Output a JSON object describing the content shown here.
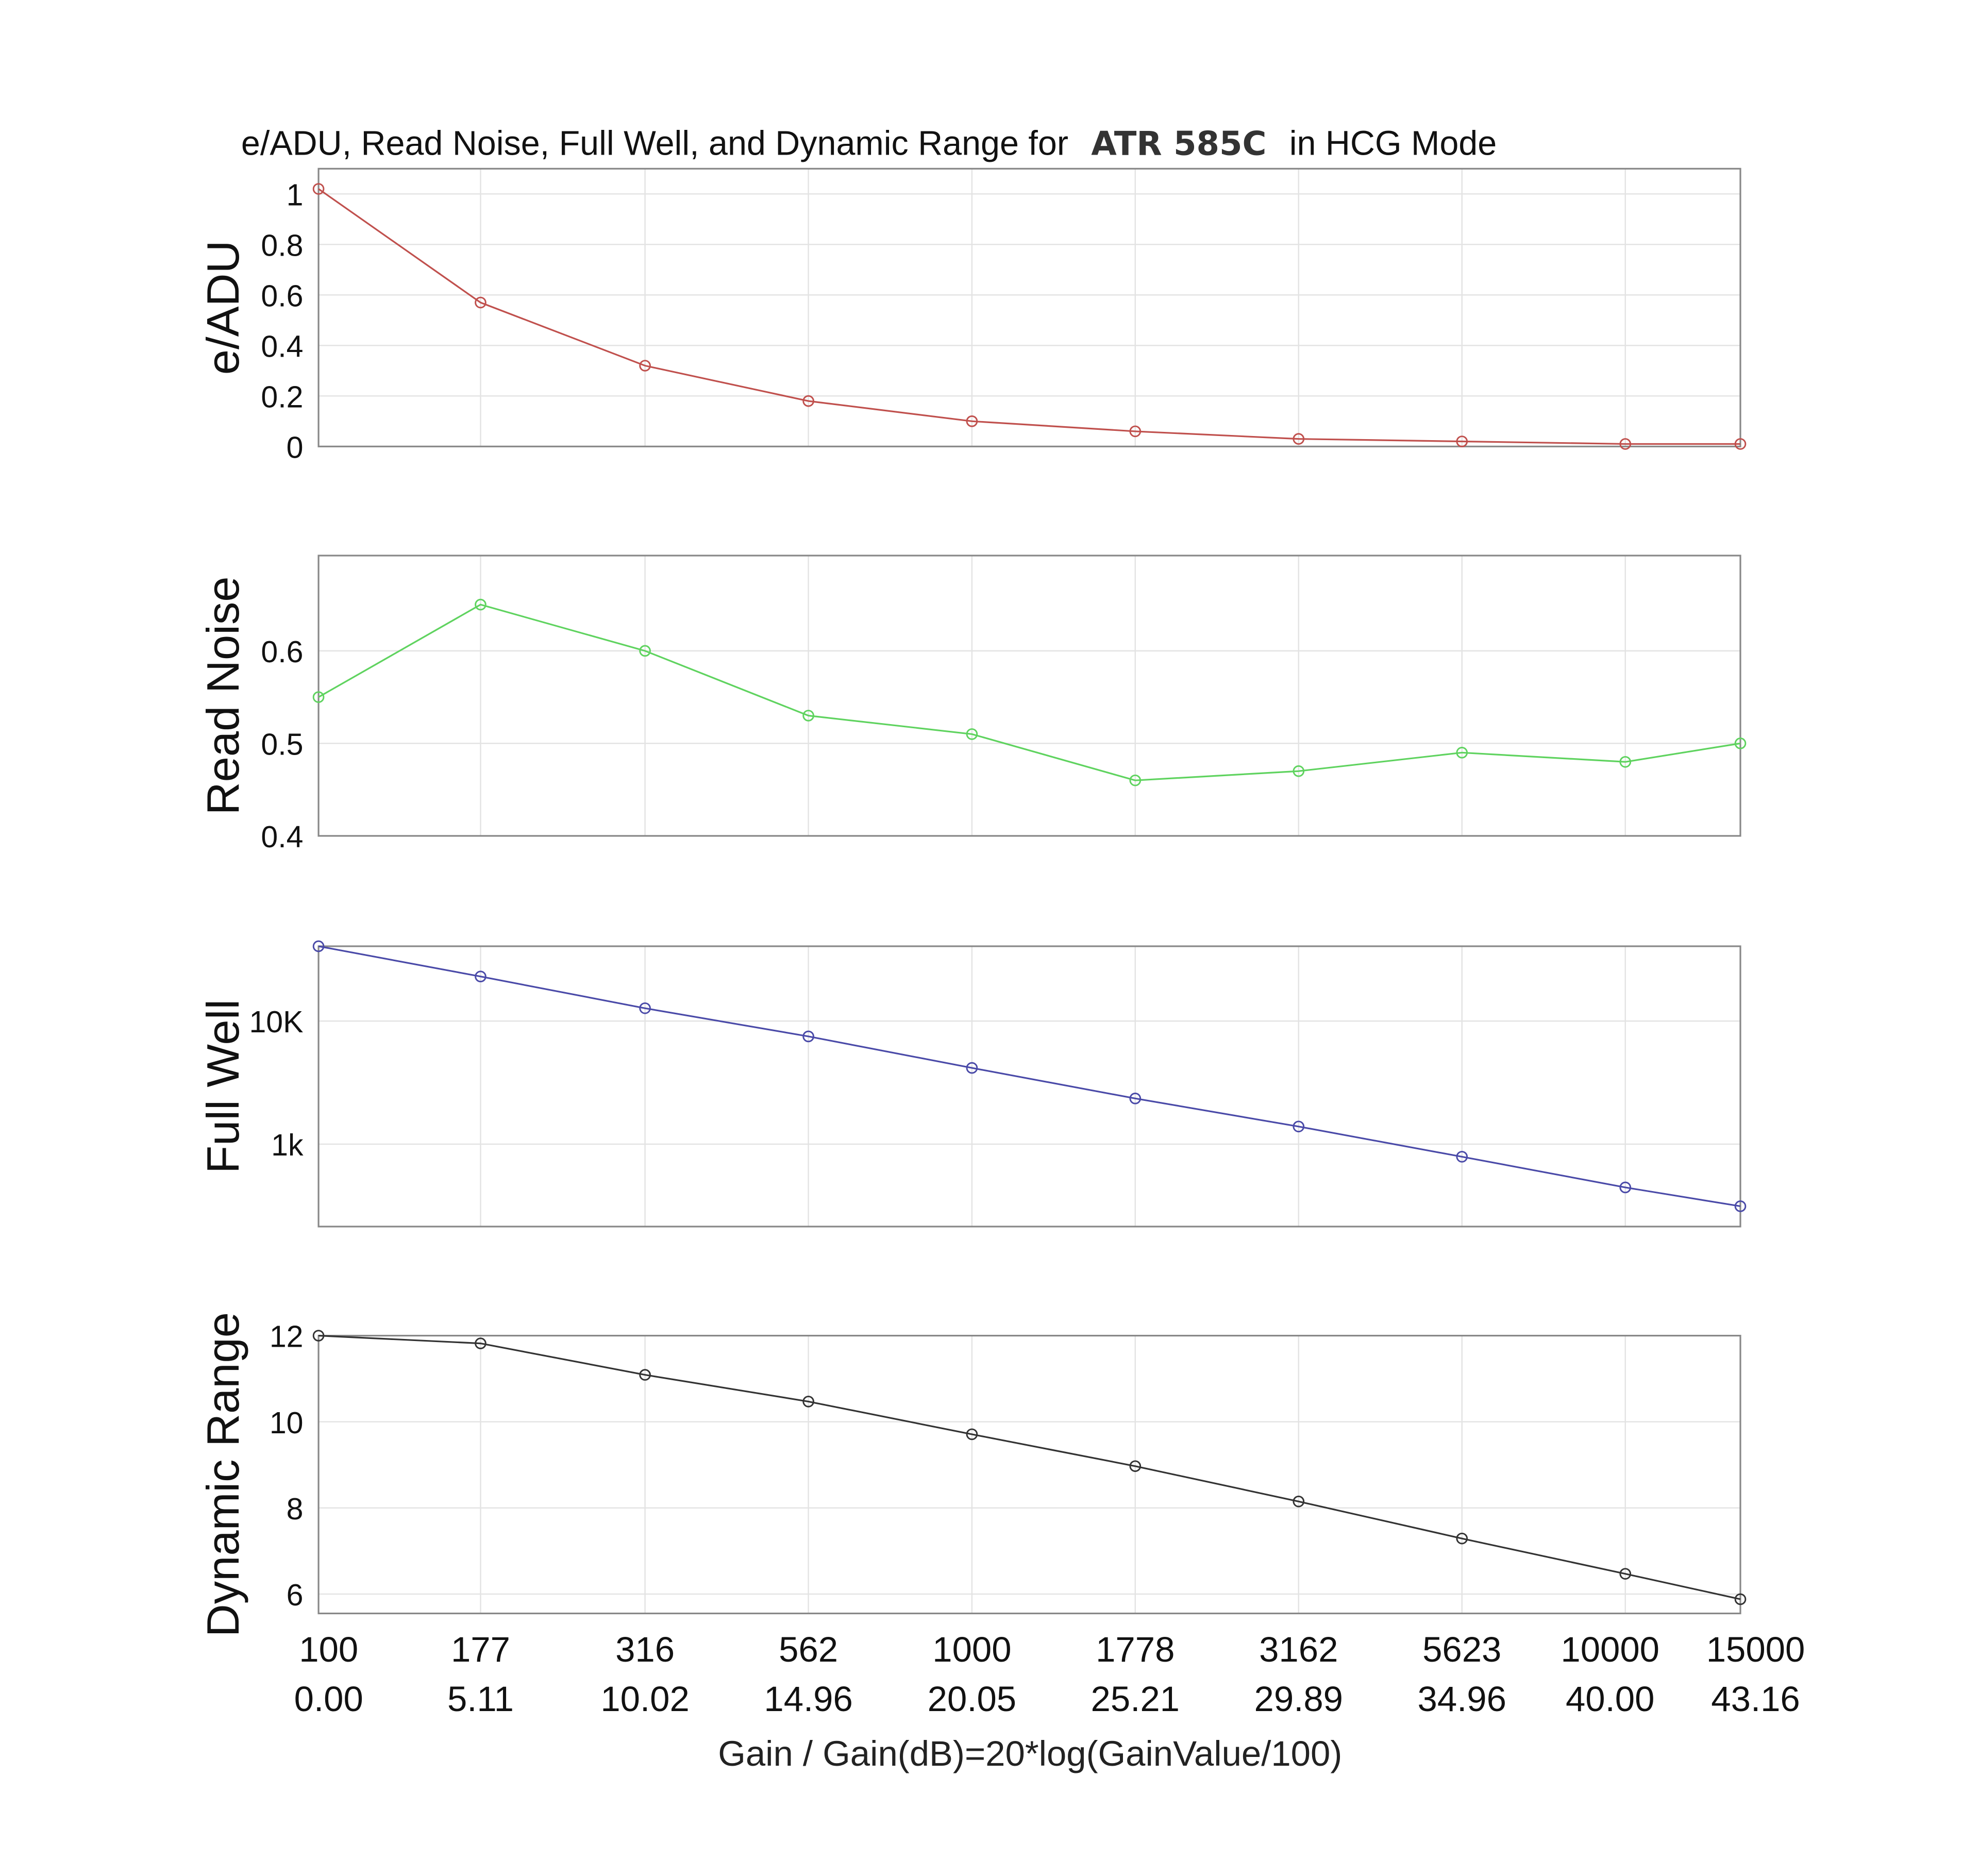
{
  "chart_data": {
    "type": "line",
    "title_prefix": "e/ADU, Read Noise, Full Well, and Dynamic Range for",
    "title_camera": "ATR 585C",
    "title_suffix": "in HCG Mode",
    "xlabel": "Gain / Gain(dB)=20*log(GainValue/100)",
    "x_scale": "log",
    "x": [
      100,
      177,
      316,
      562,
      1000,
      1778,
      3162,
      5623,
      10000,
      15000
    ],
    "x_tick_labels": [
      "100",
      "177",
      "316",
      "562",
      "1000",
      "1778",
      "3162",
      "5623",
      "10000",
      "15000"
    ],
    "x_tick_labels_db": [
      "0.00",
      "5.11",
      "10.02",
      "14.96",
      "20.05",
      "25.21",
      "29.89",
      "34.96",
      "40.00",
      "43.16"
    ],
    "grid": true,
    "panels": [
      {
        "name": "e/ADU",
        "ylabel": "e/ADU",
        "color": "#c0504d",
        "y_scale": "linear",
        "ylim": [
          0,
          1.1
        ],
        "yticks": [
          0,
          0.2,
          0.4,
          0.6,
          0.8,
          1
        ],
        "ytick_labels": [
          "0",
          "0.2",
          "0.4",
          "0.6",
          "0.8",
          "1"
        ],
        "values": [
          1.02,
          0.57,
          0.32,
          0.18,
          0.1,
          0.06,
          0.03,
          0.02,
          0.01,
          0.01
        ]
      },
      {
        "name": "Read Noise",
        "ylabel": "Read Noise",
        "color": "#5fd35f",
        "y_scale": "linear",
        "ylim": [
          0.4,
          0.703
        ],
        "yticks": [
          0.4,
          0.5,
          0.6
        ],
        "ytick_labels": [
          "0.4",
          "0.5",
          "0.6"
        ],
        "values": [
          0.55,
          0.65,
          0.6,
          0.53,
          0.51,
          0.46,
          0.47,
          0.49,
          0.48,
          0.5
        ]
      },
      {
        "name": "Full Well",
        "ylabel": "Full Well",
        "color": "#4a4aa8",
        "y_scale": "log",
        "ylim": [
          214,
          40500
        ],
        "yticks": [
          1000,
          10000
        ],
        "ytick_labels": [
          "1k",
          "10K"
        ],
        "values": [
          40500,
          23000,
          12700,
          7500,
          4160,
          2350,
          1390,
          790,
          445,
          313
        ]
      },
      {
        "name": "Dynamic Range",
        "ylabel": "Dynamic Range",
        "color": "#333333",
        "y_scale": "linear",
        "ylim": [
          5.55,
          12
        ],
        "yticks": [
          6,
          8,
          10,
          12
        ],
        "ytick_labels": [
          "6",
          "8",
          "10",
          "12"
        ],
        "values": [
          12.0,
          11.82,
          11.09,
          10.47,
          9.71,
          8.97,
          8.15,
          7.29,
          6.47,
          5.88
        ]
      }
    ]
  }
}
